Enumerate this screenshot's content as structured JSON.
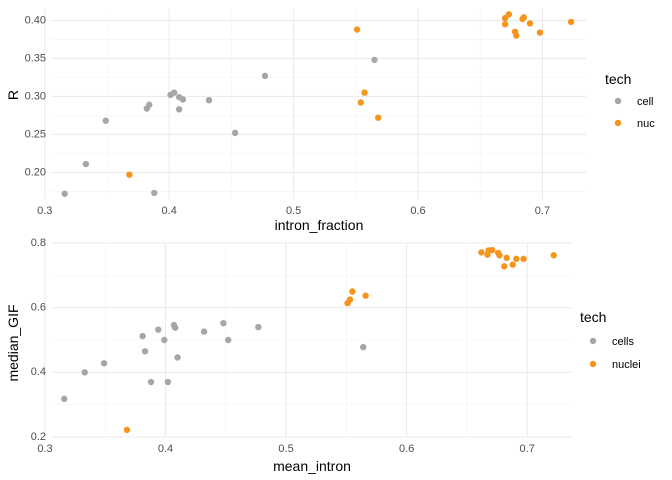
{
  "colors": {
    "cell": "#a6a6a6",
    "nuc": "#f7941d"
  },
  "chart_data": [
    {
      "type": "scatter",
      "xlabel": "intron_fraction",
      "ylabel": "R",
      "xlim": [
        0.305,
        0.735
      ],
      "ylim": [
        0.165,
        0.415
      ],
      "xticks": [
        0.3,
        0.4,
        0.5,
        0.6,
        0.7
      ],
      "xtick_labels": [
        "0.3",
        "0.4",
        "0.5",
        "0.6",
        "0.7"
      ],
      "yticks": [
        0.2,
        0.25,
        0.3,
        0.35,
        0.4
      ],
      "ytick_labels": [
        "0.20",
        "0.25",
        "0.30",
        "0.35",
        "0.40"
      ],
      "legend": {
        "title": "tech",
        "position": "right",
        "entries": [
          "cell",
          "nuc"
        ]
      },
      "grid": true,
      "series": [
        {
          "name": "cell",
          "color": "cell",
          "points": [
            [
              0.316,
              0.172
            ],
            [
              0.333,
              0.211
            ],
            [
              0.349,
              0.268
            ],
            [
              0.382,
              0.284
            ],
            [
              0.384,
              0.289
            ],
            [
              0.388,
              0.173
            ],
            [
              0.401,
              0.302
            ],
            [
              0.404,
              0.305
            ],
            [
              0.408,
              0.283
            ],
            [
              0.408,
              0.299
            ],
            [
              0.411,
              0.296
            ],
            [
              0.432,
              0.295
            ],
            [
              0.453,
              0.252
            ],
            [
              0.477,
              0.327
            ],
            [
              0.565,
              0.348
            ]
          ]
        },
        {
          "name": "nuc",
          "color": "nuc",
          "points": [
            [
              0.368,
              0.197
            ],
            [
              0.551,
              0.388
            ],
            [
              0.554,
              0.292
            ],
            [
              0.557,
              0.305
            ],
            [
              0.568,
              0.272
            ],
            [
              0.67,
              0.395
            ],
            [
              0.67,
              0.403
            ],
            [
              0.673,
              0.408
            ],
            [
              0.678,
              0.385
            ],
            [
              0.679,
              0.38
            ],
            [
              0.684,
              0.402
            ],
            [
              0.685,
              0.404
            ],
            [
              0.69,
              0.396
            ],
            [
              0.698,
              0.384
            ],
            [
              0.723,
              0.398
            ]
          ]
        }
      ]
    },
    {
      "type": "scatter",
      "xlabel": "mean_intron",
      "ylabel": "median_GIF",
      "xlim": [
        0.305,
        0.738
      ],
      "ylim": [
        0.2,
        0.8
      ],
      "xticks": [
        0.3,
        0.4,
        0.5,
        0.6,
        0.7
      ],
      "xtick_labels": [
        "0.3",
        "0.4",
        "0.5",
        "0.6",
        "0.7"
      ],
      "yticks": [
        0.2,
        0.4,
        0.6,
        0.8
      ],
      "ytick_labels": [
        "0.2",
        "0.4",
        "0.6",
        "0.8"
      ],
      "legend": {
        "title": "tech",
        "position": "right",
        "entries": [
          "cells",
          "nuclei"
        ]
      },
      "grid": true,
      "series": [
        {
          "name": "cells",
          "color": "cell",
          "points": [
            [
              0.316,
              0.318
            ],
            [
              0.333,
              0.4
            ],
            [
              0.349,
              0.428
            ],
            [
              0.381,
              0.512
            ],
            [
              0.383,
              0.465
            ],
            [
              0.388,
              0.37
            ],
            [
              0.394,
              0.532
            ],
            [
              0.399,
              0.5
            ],
            [
              0.402,
              0.37
            ],
            [
              0.407,
              0.546
            ],
            [
              0.408,
              0.538
            ],
            [
              0.41,
              0.446
            ],
            [
              0.432,
              0.526
            ],
            [
              0.448,
              0.552
            ],
            [
              0.452,
              0.5
            ],
            [
              0.477,
              0.54
            ],
            [
              0.564,
              0.478
            ]
          ]
        },
        {
          "name": "nuclei",
          "color": "nuc",
          "points": [
            [
              0.368,
              0.222
            ],
            [
              0.551,
              0.614
            ],
            [
              0.553,
              0.625
            ],
            [
              0.555,
              0.65
            ],
            [
              0.566,
              0.637
            ],
            [
              0.662,
              0.771
            ],
            [
              0.667,
              0.764
            ],
            [
              0.668,
              0.777
            ],
            [
              0.671,
              0.778
            ],
            [
              0.676,
              0.769
            ],
            [
              0.677,
              0.762
            ],
            [
              0.681,
              0.728
            ],
            [
              0.683,
              0.754
            ],
            [
              0.688,
              0.733
            ],
            [
              0.691,
              0.751
            ],
            [
              0.697,
              0.751
            ],
            [
              0.722,
              0.762
            ]
          ]
        }
      ]
    }
  ]
}
